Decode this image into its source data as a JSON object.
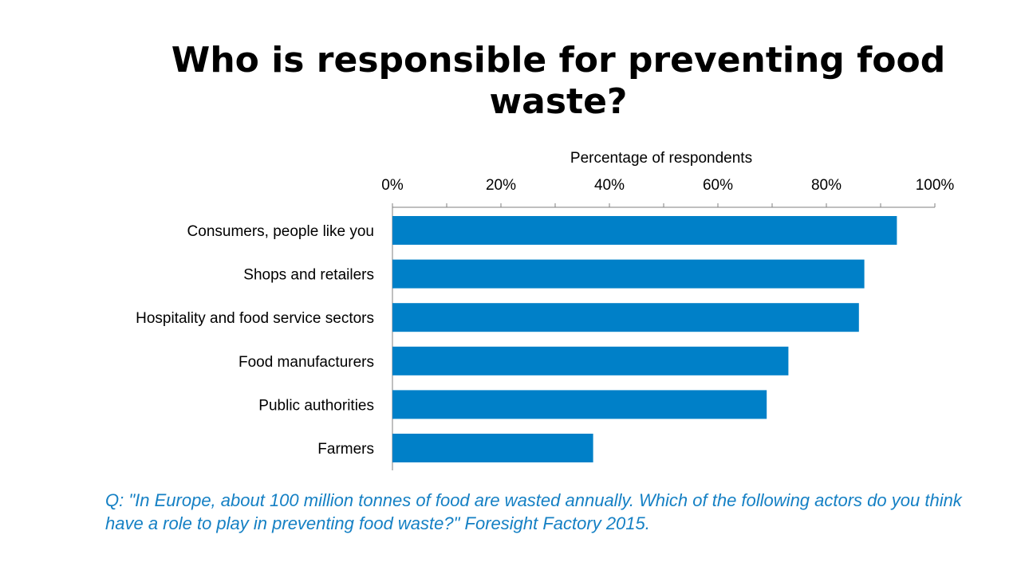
{
  "title": "Who is responsible for preventing food waste?",
  "caption": "Q: \"In Europe, about 100 million tonnes of food are wasted annually. Which of the following actors do you think have a role to play in preventing food waste?\" Foresight Factory 2015.",
  "colors": {
    "bar": "#0080c8",
    "caption": "#1580c4",
    "axis": "#7f7f7f"
  },
  "chart_data": {
    "type": "bar",
    "orientation": "horizontal",
    "title": "Who is responsible for preventing food waste?",
    "xlabel": "Percentage of respondents",
    "x_axis_position": "top",
    "xlim": [
      0,
      100
    ],
    "tick_values": [
      0,
      20,
      40,
      60,
      80,
      100
    ],
    "tick_labels": [
      "0%",
      "20%",
      "40%",
      "60%",
      "80%",
      "100%"
    ],
    "categories": [
      "Consumers, people like you",
      "Shops and retailers",
      "Hospitality and food service sectors",
      "Food manufacturers",
      "Public authorities",
      "Farmers"
    ],
    "values": [
      93,
      87,
      86,
      73,
      69,
      37
    ],
    "unit": "%",
    "grid": false,
    "legend": "none"
  }
}
